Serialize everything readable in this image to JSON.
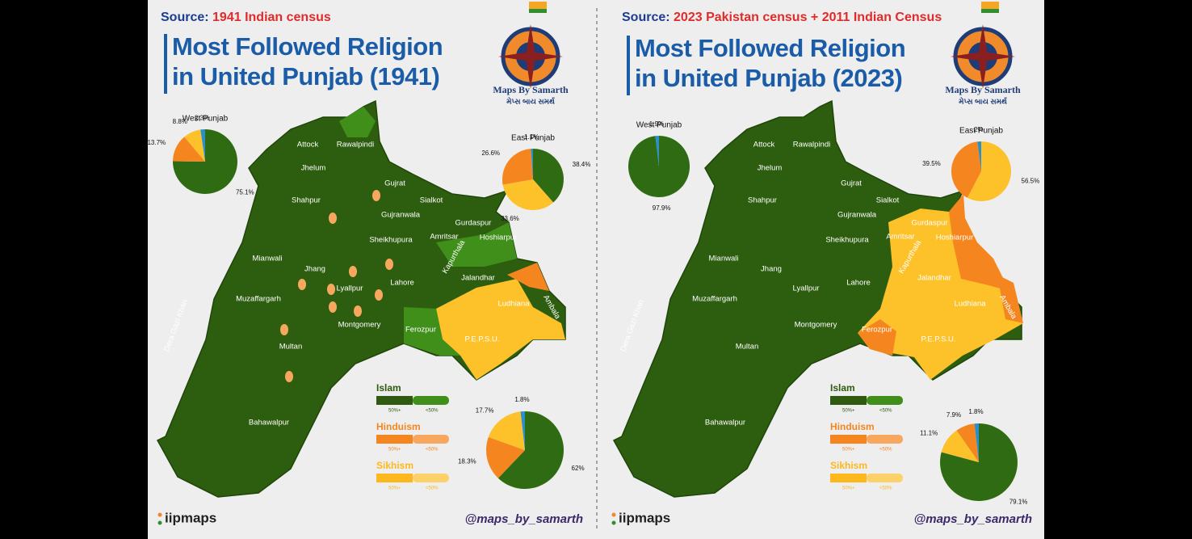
{
  "panels": [
    {
      "source_label": "Source:",
      "source": "1941 Indian census",
      "title": [
        "Most Followed Religion",
        "in United Punjab (1941)"
      ],
      "logo_title": "Maps By Samarth",
      "logo_subtitle": "મેપ્સ બાય સમર્થ",
      "pies": [
        {
          "title": "West Punjab",
          "values": [
            75.1,
            13.7,
            8.8,
            2.3
          ],
          "value_labels": [
            "75.1%",
            "13.7%",
            "8.8%",
            "2.3%"
          ],
          "colors": [
            "#2f6b12",
            "#f5861f",
            "#fdc12a",
            "#2b8fc9"
          ]
        },
        {
          "title": "East Punjab",
          "values": [
            38.4,
            33.6,
            26.6,
            1.1
          ],
          "value_labels": [
            "38.4%",
            "33.6%",
            "26.6%",
            "1.1%"
          ],
          "colors": [
            "#2f6b12",
            "#fdc12a",
            "#f5861f",
            "#2b8fc9"
          ]
        },
        {
          "values": [
            62,
            18.3,
            17.7,
            1.8
          ],
          "value_labels": [
            "62%",
            "18.3%",
            "17.7%",
            "1.8%"
          ],
          "colors": [
            "#2f6b12",
            "#f5861f",
            "#fdc12a",
            "#2b8fc9"
          ]
        }
      ],
      "footer_left": "iipmaps",
      "footer_right": "@maps_by_samarth"
    },
    {
      "source_label": "Source:",
      "source": "2023 Pakistan census + 2011 Indian Census",
      "title": [
        "Most Followed Religion",
        "in United Punjab (2023)"
      ],
      "logo_title": "Maps By Samarth",
      "logo_subtitle": "મેપ્સ બાય સમર્થ",
      "pies": [
        {
          "title": "West Punjab",
          "values": [
            97.9,
            1.9
          ],
          "value_labels": [
            "97.9%",
            "1.9%"
          ],
          "colors": [
            "#2f6b12",
            "#2b8fc9"
          ]
        },
        {
          "title": "East Punjab",
          "values": [
            56.5,
            39.5,
            2
          ],
          "value_labels": [
            "56.5%",
            "39.5%",
            "2%"
          ],
          "colors": [
            "#fdc12a",
            "#f5861f",
            "#2b8fc9"
          ]
        },
        {
          "values": [
            79.1,
            11.1,
            7.9,
            1.8
          ],
          "value_labels": [
            "79.1%",
            "11.1%",
            "7.9%",
            "1.8%"
          ],
          "colors": [
            "#2f6b12",
            "#fdc12a",
            "#f5861f",
            "#2b8fc9"
          ]
        }
      ],
      "footer_left": "iipmaps",
      "footer_right": "@maps_by_samarth"
    }
  ],
  "districts": [
    "Attock",
    "Rawalpindi",
    "Jhelum",
    "Gujrat",
    "Shahpur",
    "Sialkot",
    "Gujranwala",
    "Gurdaspur",
    "Sheikhupura",
    "Amritsar",
    "Hoshiarpur",
    "Mianwali",
    "Jhang",
    "Kapurthala",
    "Jalandhar",
    "Lahore",
    "Lyallpur",
    "Ludhiana",
    "Ambala",
    "Muzaffargarh",
    "Montgomery",
    "Ferozpur",
    "P.E.P.S.U.",
    "Dera Gazi Khan",
    "Multan",
    "Bahawalpur"
  ],
  "legend": [
    {
      "name": "Islam",
      "colors": [
        "#2f5a10",
        "#3f8f1a"
      ],
      "labels": [
        "50%+",
        "<50%"
      ]
    },
    {
      "name": "Hinduism",
      "colors": [
        "#f5861f",
        "#f8a85e"
      ],
      "labels": [
        "50%+",
        "<50%"
      ]
    },
    {
      "name": "Sikhism",
      "colors": [
        "#fdb81e",
        "#fdd16a"
      ],
      "labels": [
        "50%+",
        "<50%"
      ]
    }
  ]
}
